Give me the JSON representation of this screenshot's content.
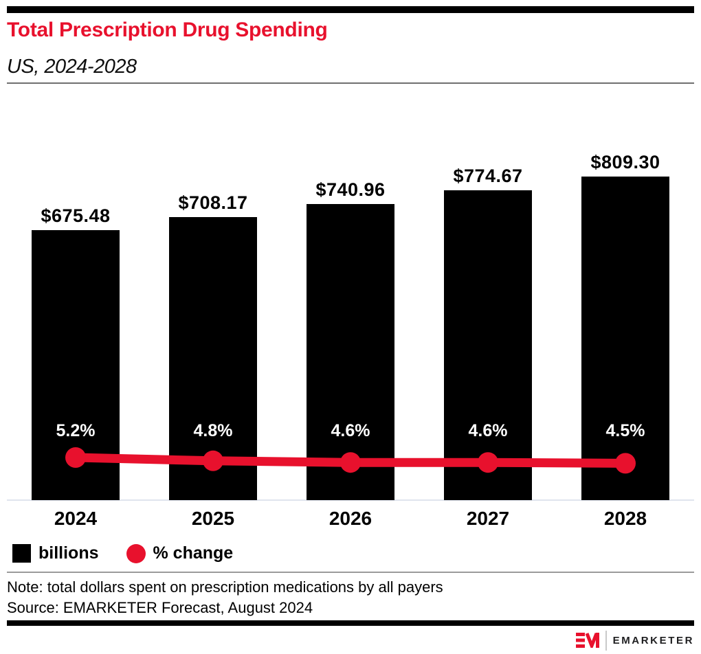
{
  "header": {
    "title": "Total Prescription Drug Spending",
    "subtitle": "US, 2024-2028"
  },
  "chart_data": {
    "type": "bar",
    "title": "Total Prescription Drug Spending",
    "subtitle": "US, 2024-2028",
    "categories": [
      "2024",
      "2025",
      "2026",
      "2027",
      "2028"
    ],
    "series": [
      {
        "name": "billions",
        "type": "bar",
        "values": [
          675.48,
          708.17,
          740.96,
          774.67,
          809.3
        ],
        "labels": [
          "$675.48",
          "$708.17",
          "$740.96",
          "$774.67",
          "$809.30"
        ],
        "color": "#000000"
      },
      {
        "name": "% change",
        "type": "line",
        "values": [
          5.2,
          4.8,
          4.6,
          4.6,
          4.5
        ],
        "labels": [
          "5.2%",
          "4.8%",
          "4.6%",
          "4.6%",
          "4.5%"
        ],
        "color": "#e8112d"
      }
    ],
    "ylim": [
      0,
      900
    ],
    "grid": false,
    "legend_position": "bottom"
  },
  "legend": {
    "items": [
      {
        "label": "billions",
        "swatch": "square",
        "color": "#000000"
      },
      {
        "label": "% change",
        "swatch": "circle",
        "color": "#e8112d"
      }
    ]
  },
  "notes": {
    "note": "Note: total dollars spent on prescription medications by all payers",
    "source": "Source: EMARKETER Forecast, August 2024"
  },
  "footer": {
    "logo": "EM",
    "brand": "EMARKETER"
  },
  "colors": {
    "accent": "#e8112d",
    "bar": "#000000",
    "axis_line": "#dfe4ee"
  }
}
